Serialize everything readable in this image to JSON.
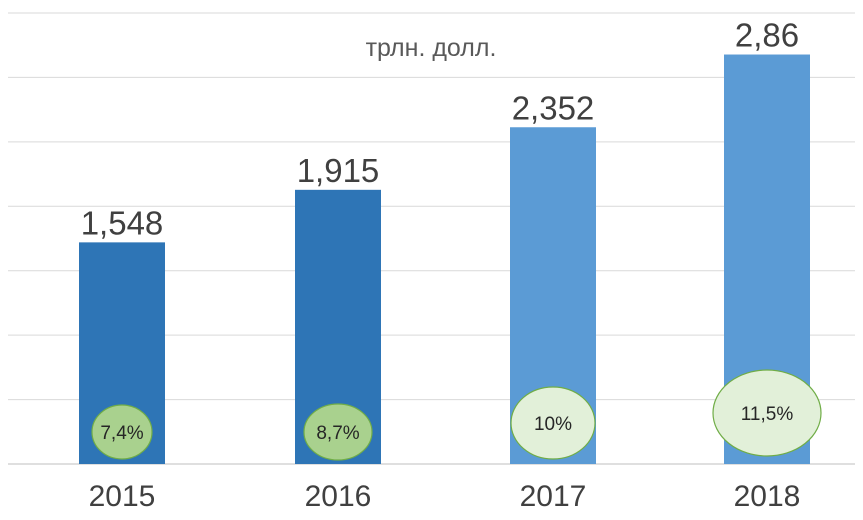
{
  "chart_data": {
    "type": "bar",
    "title": "трлн. долл.",
    "categories": [
      "2015",
      "2016",
      "2017",
      "2018"
    ],
    "values": [
      1.548,
      1.915,
      2.352,
      2.86
    ],
    "value_labels": [
      "1,548",
      "1,915",
      "2,352",
      "2,86"
    ],
    "growth_labels": [
      "7,4%",
      "8,7%",
      "10%",
      "11,5%"
    ],
    "ylim": [
      0,
      3.15
    ],
    "grid": true,
    "legend": "none",
    "colors": {
      "bars": [
        "#2e75b6",
        "#2e75b6",
        "#5b9bd5",
        "#5b9bd5"
      ],
      "circles": [
        "#a9d18e",
        "#a9d18e",
        "#e2f0d9",
        "#e2f0d9"
      ],
      "circle_stroke": "#70ad47",
      "grid": "#d9d9d9",
      "text": "#404040",
      "axis_text": "#404040",
      "title_text": "#595959"
    }
  }
}
